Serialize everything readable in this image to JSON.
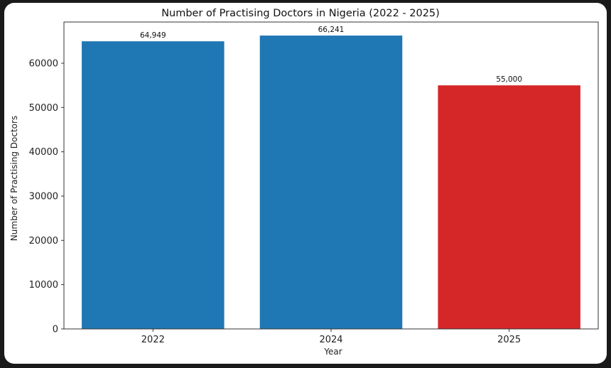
{
  "chart_data": {
    "type": "bar",
    "title": "Number of Practising Doctors in Nigeria (2022 - 2025)",
    "xlabel": "Year",
    "ylabel": "Number of Practising Doctors",
    "categories": [
      "2022",
      "2024",
      "2025"
    ],
    "values": [
      64949,
      66241,
      55000
    ],
    "data_labels": [
      "64,949",
      "66,241",
      "55,000"
    ],
    "bar_colors": [
      "#1f77b4",
      "#1f77b4",
      "#d62728"
    ],
    "ylim": [
      0,
      69300
    ],
    "yticks": [
      0,
      10000,
      20000,
      30000,
      40000,
      50000,
      60000
    ],
    "ytick_labels": [
      "0",
      "10000",
      "20000",
      "30000",
      "40000",
      "50000",
      "60000"
    ],
    "grid": false,
    "legend": "none"
  }
}
